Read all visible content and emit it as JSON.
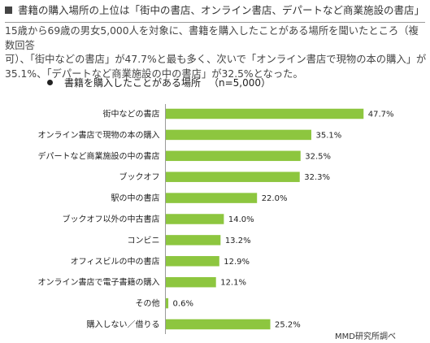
{
  "header": {
    "icon": "black-square-icon",
    "title": "書籍の購入場所の上位は「街中の書店、オンライン書店、デパートなど商業施設の書店」"
  },
  "intro": {
    "line1": "15歳から69歳の男女5,000人を対象に、書籍を購入したことがある場所を聞いたところ（複数回答",
    "line2": "可）、「街中などの書店」が47.7%と最も多く、次いで「オンライン書店で現物の本の購入」が",
    "line3": "35.1%、「デパートなど商業施設の中の書店」が32.5%となった。"
  },
  "chart_data": {
    "type": "bar",
    "orientation": "horizontal",
    "title": "書籍を購入したことがある場所",
    "sample_size": "（n=5,000）",
    "categories": [
      "街中などの書店",
      "オンライン書店で現物の本の購入",
      "デパートなど商業施設の中の書店",
      "ブックオフ",
      "駅の中の書店",
      "ブックオフ以外の中古書店",
      "コンビニ",
      "オフィスビルの中の書店",
      "オンライン書店で電子書籍の購入",
      "その他",
      "購入しない／借りる"
    ],
    "values": [
      47.7,
      35.1,
      32.5,
      32.3,
      22.0,
      14.0,
      13.2,
      12.9,
      12.1,
      0.6,
      25.2
    ],
    "value_labels": [
      "47.7%",
      "35.1%",
      "32.5%",
      "32.3%",
      "22.0%",
      "14.0%",
      "13.2%",
      "12.9%",
      "12.1%",
      "0.6%",
      "25.2%"
    ],
    "unit": "%",
    "xlim": [
      0,
      60
    ],
    "bar_color": "#8dc63f",
    "grid": false
  },
  "source": "MMD研究所調べ"
}
